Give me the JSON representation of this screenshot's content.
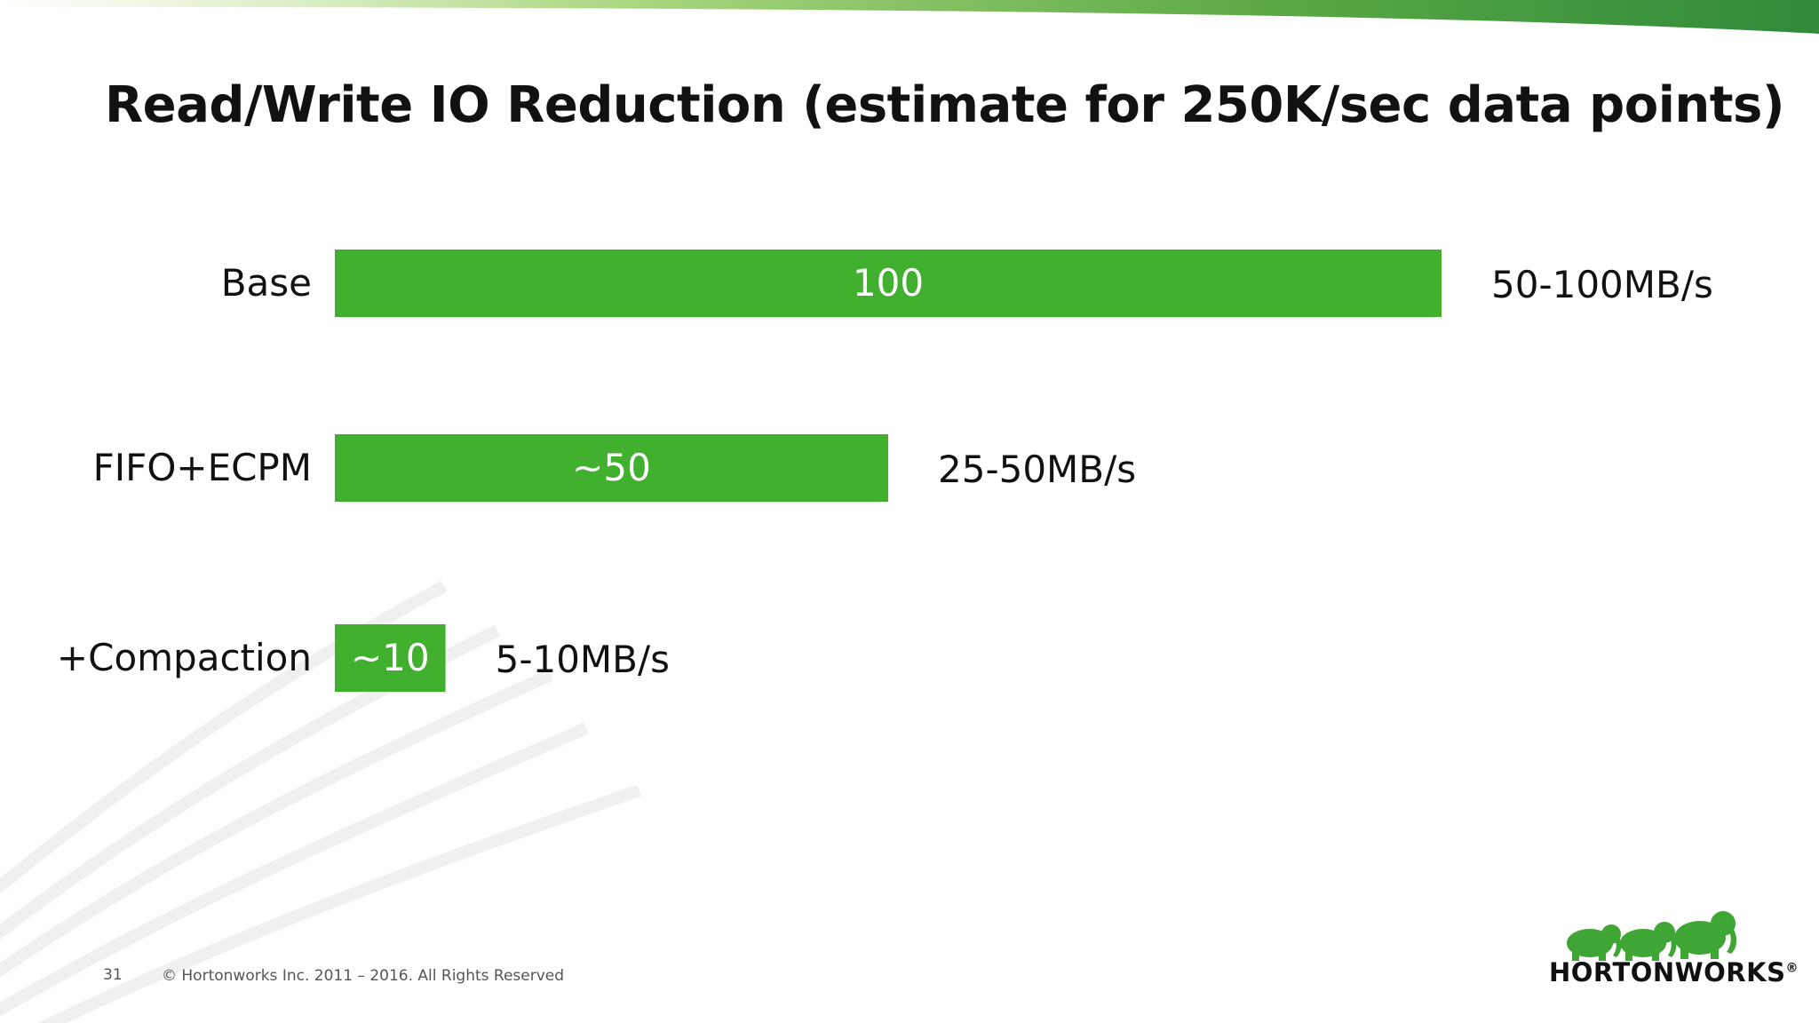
{
  "slide": {
    "title": "Read/Write IO Reduction (estimate for 250K/sec data points)",
    "slide_number": "31",
    "copyright": "© Hortonworks Inc. 2011 – 2016. All Rights Reserved",
    "logo_text": "HORTONWORKS",
    "logo_mark": "®"
  },
  "colors": {
    "bar": "#42b02f",
    "accent_dark": "#2f8a3a",
    "accent_light": "#b4dc8c"
  },
  "chart_data": {
    "type": "bar",
    "orientation": "horizontal",
    "categories": [
      "Base",
      "FIFO+ECPM",
      "+Compaction"
    ],
    "values": [
      100,
      50,
      10
    ],
    "bar_labels": [
      "100",
      "~50",
      "~10"
    ],
    "rate_labels": [
      "50-100MB/s",
      "25-50MB/s",
      "5-10MB/s"
    ],
    "title": "",
    "xlabel": "",
    "ylabel": "",
    "xlim": [
      0,
      100
    ],
    "grid": false,
    "legend": "none"
  }
}
